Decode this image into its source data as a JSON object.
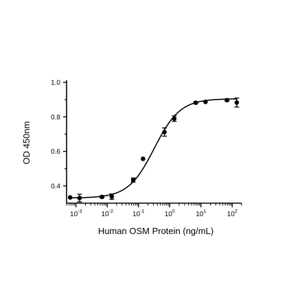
{
  "chart_data": {
    "type": "scatter",
    "xlabel": "Human OSM Protein (ng/mL)",
    "ylabel": "OD 450nm",
    "xscale": "log",
    "xlim": [
      0.0005,
      200
    ],
    "ylim": [
      0.3,
      1.0
    ],
    "x_ticks": [
      {
        "base": "10",
        "exp": "-3",
        "value": 0.001
      },
      {
        "base": "10",
        "exp": "-2",
        "value": 0.01
      },
      {
        "base": "10",
        "exp": "-1",
        "value": 0.1
      },
      {
        "base": "10",
        "exp": "0",
        "value": 1
      },
      {
        "base": "10",
        "exp": "1",
        "value": 10
      },
      {
        "base": "10",
        "exp": "2",
        "value": 100
      }
    ],
    "y_ticks": [
      {
        "label": "0.4",
        "value": 0.4
      },
      {
        "label": "0.6",
        "value": 0.6
      },
      {
        "label": "0.8",
        "value": 0.8
      },
      {
        "label": "1.0",
        "value": 1.0
      }
    ],
    "points": [
      {
        "x": 0.00065,
        "y": 0.333,
        "err": 0.004
      },
      {
        "x": 0.0013,
        "y": 0.33,
        "err": 0.022
      },
      {
        "x": 0.0068,
        "y": 0.336,
        "err": 0.006
      },
      {
        "x": 0.014,
        "y": 0.338,
        "err": 0.016
      },
      {
        "x": 0.068,
        "y": 0.434,
        "err": 0.012
      },
      {
        "x": 0.14,
        "y": 0.557,
        "err": 0.004
      },
      {
        "x": 0.68,
        "y": 0.712,
        "err": 0.024
      },
      {
        "x": 1.4,
        "y": 0.79,
        "err": 0.016
      },
      {
        "x": 6.8,
        "y": 0.882,
        "err": 0.006
      },
      {
        "x": 14,
        "y": 0.887,
        "err": 0.004
      },
      {
        "x": 68,
        "y": 0.897,
        "err": 0.006
      },
      {
        "x": 140,
        "y": 0.883,
        "err": 0.026
      }
    ],
    "fit": {
      "model": "4PL",
      "bottom": 0.33,
      "top": 0.905,
      "ec50": 0.32,
      "hill": 1.05
    },
    "grid": false,
    "legend": "none"
  }
}
